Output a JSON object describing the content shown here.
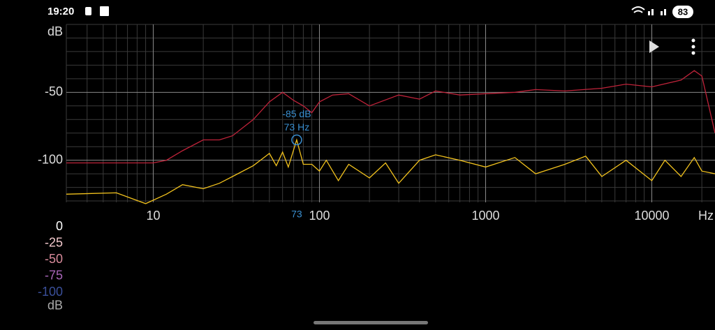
{
  "status_bar": {
    "time": "19:20",
    "battery": "83"
  },
  "chart_data": {
    "type": "line",
    "x_label": "Hz",
    "y_label": "dB",
    "log_x": true,
    "grid": true,
    "xlim": [
      3,
      24000
    ],
    "ylim": [
      -131,
      0
    ],
    "xticks": [
      10,
      100,
      1000,
      10000
    ],
    "minor_xticks": [
      3,
      4,
      5,
      6,
      7,
      8,
      9,
      20,
      30,
      40,
      50,
      60,
      70,
      80,
      90,
      200,
      300,
      400,
      500,
      600,
      700,
      800,
      900,
      2000,
      3000,
      4000,
      5000,
      6000,
      7000,
      8000,
      9000,
      20000
    ],
    "yticks": [
      -50,
      -100
    ],
    "minor_yticks": [
      0,
      -10,
      -20,
      -30,
      -40,
      -60,
      -70,
      -80,
      -90,
      -110,
      -120,
      -130
    ],
    "series": [
      {
        "color": "#c0233a",
        "x": [
          3,
          10,
          12,
          15,
          20,
          25,
          30,
          40,
          50,
          60,
          70,
          80,
          90,
          100,
          120,
          150,
          200,
          300,
          400,
          500,
          700,
          1000,
          1500,
          2000,
          3000,
          5000,
          7000,
          10000,
          15000,
          18000,
          20000,
          24000
        ],
        "values": [
          -102,
          -102,
          -100,
          -93,
          -85,
          -85,
          -82,
          -70,
          -57,
          -50,
          -56,
          -60,
          -65,
          -57,
          -52,
          -51,
          -60,
          -52,
          -55,
          -49,
          -52,
          -51,
          -50,
          -48,
          -49,
          -47,
          -44,
          -46,
          -41,
          -34,
          -38,
          -80
        ]
      },
      {
        "color": "#f2c21d",
        "x": [
          3,
          6,
          9,
          12,
          15,
          20,
          25,
          30,
          40,
          50,
          55,
          60,
          65,
          73,
          80,
          90,
          100,
          110,
          130,
          150,
          200,
          250,
          300,
          400,
          500,
          700,
          1000,
          1500,
          2000,
          3000,
          4000,
          5000,
          7000,
          10000,
          12000,
          15000,
          18000,
          20000,
          24000
        ],
        "values": [
          -125,
          -124,
          -132,
          -125,
          -118,
          -121,
          -117,
          -112,
          -104,
          -95,
          -104,
          -94,
          -105,
          -85,
          -103,
          -103,
          -108,
          -100,
          -115,
          -103,
          -113,
          -102,
          -117,
          -100,
          -96,
          -100,
          -105,
          -98,
          -110,
          -103,
          -97,
          -112,
          -100,
          -115,
          -100,
          -112,
          -98,
          -108,
          -110
        ]
      }
    ],
    "marker": {
      "x": 73,
      "y": -85,
      "label_y": "-85 dB",
      "label_x": "73 Hz",
      "axis_label": "73",
      "color": "#3a8fd0"
    }
  },
  "color_scale": {
    "labels": [
      "0",
      "-25",
      "-50",
      "-75",
      "-100"
    ],
    "colors": [
      "#ffffff",
      "#f2c8cc",
      "#d88a9a",
      "#a865b8",
      "#3a4f9a"
    ],
    "unit": "dB"
  }
}
